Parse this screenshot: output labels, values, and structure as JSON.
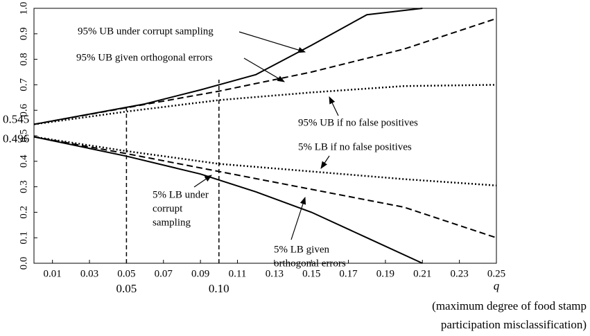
{
  "chart_data": {
    "type": "line",
    "xlabel_symbol": "q",
    "xlabel": [
      "(maximum degree of food stamp",
      "participation misclassification)"
    ],
    "xlim": [
      0,
      0.25
    ],
    "ylim": [
      0,
      1
    ],
    "xticks": [
      0.01,
      0.03,
      0.05,
      0.07,
      0.09,
      0.11,
      0.13,
      0.15,
      0.17,
      0.19,
      0.21,
      0.23,
      0.25
    ],
    "yticks": [
      {
        "value": 0,
        "label": "0.0"
      },
      0.1,
      0.2,
      0.3,
      0.4,
      0.5,
      0.6,
      0.7,
      0.8,
      0.9,
      {
        "value": 1,
        "label": "1.0"
      }
    ],
    "ymarks": [
      0.545,
      0.496
    ],
    "vlines": [
      {
        "value": 0.05,
        "label": "0.05",
        "top": 0.62
      },
      {
        "value": 0.1,
        "label": "0.10",
        "top": 0.72
      }
    ],
    "series": [
      {
        "name": [
          "95% UB under corrupt sampling"
        ],
        "dash": "solid",
        "color": "#000",
        "x": [
          0,
          0.03,
          0.06,
          0.09,
          0.12,
          0.15,
          0.18,
          0.21
        ],
        "values": [
          0.545,
          0.585,
          0.625,
          0.68,
          0.74,
          0.855,
          0.975,
          1.0
        ]
      },
      {
        "name": [
          "95% UB given orthogonal errors"
        ],
        "dash": "dashed",
        "color": "#000",
        "x": [
          0,
          0.05,
          0.1,
          0.15,
          0.2,
          0.25
        ],
        "values": [
          0.545,
          0.61,
          0.675,
          0.75,
          0.84,
          0.96
        ]
      },
      {
        "name": [
          "95% UB if no false positives"
        ],
        "dash": "dotted",
        "color": "#000",
        "x": [
          0,
          0.05,
          0.1,
          0.15,
          0.2,
          0.25
        ],
        "values": [
          0.545,
          0.595,
          0.64,
          0.67,
          0.695,
          0.7
        ]
      },
      {
        "name": [
          "5% LB if no false positives"
        ],
        "dash": "dotted",
        "color": "#000",
        "x": [
          0,
          0.05,
          0.1,
          0.15,
          0.2,
          0.25
        ],
        "values": [
          0.496,
          0.44,
          0.39,
          0.36,
          0.33,
          0.305
        ]
      },
      {
        "name": [
          "5% LB given",
          "orthogonal errors"
        ],
        "dash": "dashed",
        "color": "#000",
        "x": [
          0,
          0.05,
          0.1,
          0.15,
          0.2,
          0.25
        ],
        "values": [
          0.496,
          0.43,
          0.36,
          0.29,
          0.22,
          0.1
        ]
      },
      {
        "name": [
          "5% LB under",
          "corrupt",
          "sampling"
        ],
        "dash": "solid",
        "color": "#000",
        "x": [
          0,
          0.05,
          0.09,
          0.12,
          0.15,
          0.18,
          0.21
        ],
        "values": [
          0.496,
          0.42,
          0.35,
          0.28,
          0.2,
          0.1,
          0.0
        ]
      }
    ]
  }
}
